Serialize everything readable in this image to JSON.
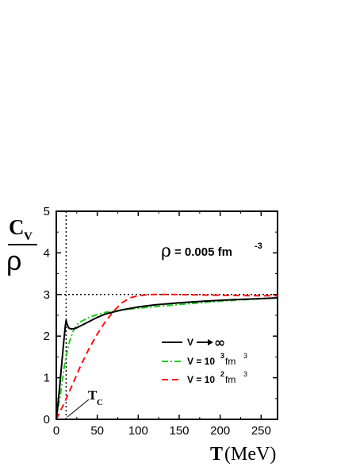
{
  "chart_data": {
    "type": "line",
    "ylabel_numerator": "C",
    "ylabel_numerator_sub": "V",
    "ylabel_denominator": "ρ",
    "xlabel_var": "T",
    "xlabel_unit": "(MeV)",
    "xlim": [
      0,
      270
    ],
    "ylim": [
      0,
      5
    ],
    "xticks": [
      0,
      50,
      100,
      150,
      200,
      250
    ],
    "yticks": [
      0,
      1,
      2,
      3,
      4,
      5
    ],
    "grid": false,
    "legend_position": "middle-right",
    "annotation": {
      "rho_symbol": "ρ",
      "rho_text": " = 0.005 fm",
      "rho_exp": "-3"
    },
    "tc_label": "T",
    "tc_sub": "C",
    "tc_value": 12,
    "reference_y": 3,
    "series": [
      {
        "name": "V → ∞",
        "legend_prefix": "V",
        "legend_unit": "",
        "legend_exp": "",
        "color": "#000000",
        "dash": "",
        "x": [
          0,
          3,
          6,
          9,
          11,
          12,
          13,
          15,
          18,
          22,
          25,
          30,
          40,
          50,
          60,
          80,
          100,
          120,
          150,
          180,
          200,
          220,
          250,
          270
        ],
        "values": [
          0,
          0.55,
          1.2,
          1.85,
          2.25,
          2.38,
          2.3,
          2.2,
          2.17,
          2.18,
          2.2,
          2.25,
          2.35,
          2.45,
          2.53,
          2.63,
          2.7,
          2.75,
          2.8,
          2.84,
          2.86,
          2.88,
          2.9,
          2.92
        ]
      },
      {
        "name": "V = 10^3 fm^3",
        "legend_prefix": "V = 10",
        "legend_exp": "3",
        "legend_unit": " fm",
        "legend_unit_exp": "3",
        "color": "#22cc22",
        "dash": "8,3,2,3",
        "x": [
          0,
          5,
          10,
          15,
          20,
          25,
          30,
          40,
          50,
          60,
          80,
          100,
          150,
          200,
          250,
          270
        ],
        "values": [
          0,
          0.6,
          1.3,
          1.8,
          2.1,
          2.27,
          2.35,
          2.45,
          2.52,
          2.57,
          2.63,
          2.67,
          2.76,
          2.84,
          2.9,
          2.92
        ]
      },
      {
        "name": "V = 10^2 fm^3",
        "legend_prefix": "V = 10",
        "legend_exp": "2",
        "legend_unit": " fm",
        "legend_unit_exp": "3",
        "color": "#ff1111",
        "dash": "8,5",
        "x": [
          0,
          10,
          20,
          30,
          40,
          50,
          60,
          70,
          80,
          90,
          100,
          110,
          120,
          140,
          170,
          200,
          250,
          270
        ],
        "values": [
          0,
          0.4,
          0.85,
          1.3,
          1.7,
          2.05,
          2.35,
          2.6,
          2.8,
          2.92,
          2.97,
          2.99,
          3.0,
          3.0,
          2.99,
          2.98,
          2.97,
          2.97
        ]
      }
    ]
  }
}
